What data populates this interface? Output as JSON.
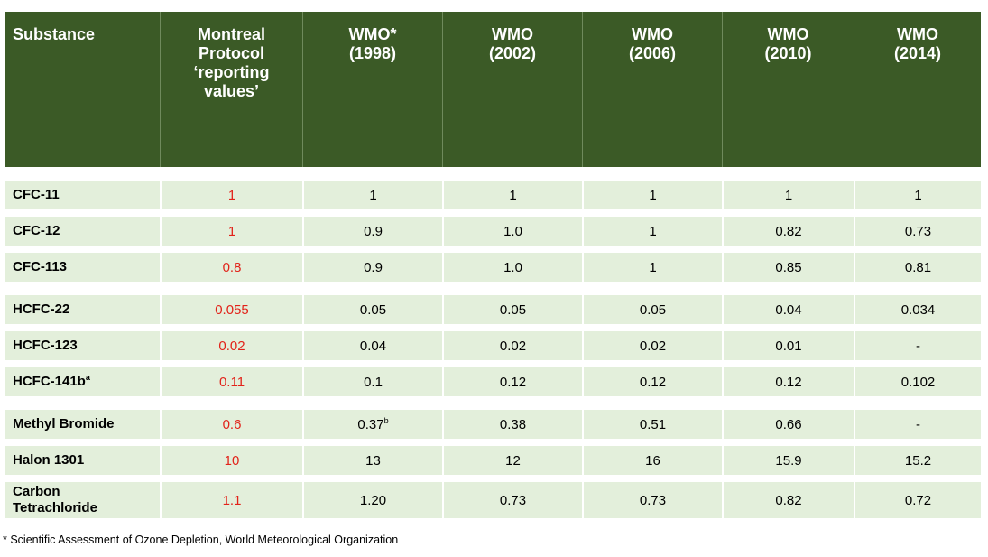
{
  "table": {
    "headers": [
      "Substance",
      "Montreal\nProtocol\n‘reporting\nvalues’",
      "WMO*\n(1998)",
      "WMO\n(2002)",
      "WMO\n(2006)",
      "WMO\n(2010)",
      "WMO\n(2014)"
    ],
    "groups": [
      [
        {
          "substance": "CFC-11",
          "sup": "",
          "mp": "1",
          "w1998": "1",
          "w1998_sup": "",
          "w2002": "1",
          "w2006": "1",
          "w2010": "1",
          "w2014": "1"
        },
        {
          "substance": "CFC-12",
          "sup": "",
          "mp": "1",
          "w1998": "0.9",
          "w1998_sup": "",
          "w2002": "1.0",
          "w2006": "1",
          "w2010": "0.82",
          "w2014": "0.73"
        },
        {
          "substance": "CFC-113",
          "sup": "",
          "mp": "0.8",
          "w1998": "0.9",
          "w1998_sup": "",
          "w2002": "1.0",
          "w2006": "1",
          "w2010": "0.85",
          "w2014": "0.81"
        }
      ],
      [
        {
          "substance": "HCFC-22",
          "sup": "",
          "mp": "0.055",
          "w1998": "0.05",
          "w1998_sup": "",
          "w2002": "0.05",
          "w2006": "0.05",
          "w2010": "0.04",
          "w2014": "0.034"
        },
        {
          "substance": "HCFC-123",
          "sup": "",
          "mp": "0.02",
          "w1998": "0.04",
          "w1998_sup": "",
          "w2002": "0.02",
          "w2006": "0.02",
          "w2010": "0.01",
          "w2014": "-"
        },
        {
          "substance": "HCFC-141b",
          "sup": "a",
          "mp": "0.11",
          "w1998": "0.1",
          "w1998_sup": "",
          "w2002": "0.12",
          "w2006": "0.12",
          "w2010": "0.12",
          "w2014": "0.102"
        }
      ],
      [
        {
          "substance": "Methyl Bromide",
          "sup": "",
          "mp": "0.6",
          "w1998": "0.37",
          "w1998_sup": "b",
          "w2002": "0.38",
          "w2006": "0.51",
          "w2010": "0.66",
          "w2014": "-"
        },
        {
          "substance": "Halon 1301",
          "sup": "",
          "mp": "10",
          "w1998": "13",
          "w1998_sup": "",
          "w2002": "12",
          "w2006": "16",
          "w2010": "15.9",
          "w2014": "15.2"
        },
        {
          "substance": "Carbon\nTetrachloride",
          "sup": "",
          "mp": "1.1",
          "w1998": "1.20",
          "w1998_sup": "",
          "w2002": "0.73",
          "w2006": "0.73",
          "w2010": "0.82",
          "w2014": "0.72"
        }
      ]
    ]
  },
  "footnote": "* Scientific Assessment of Ozone Depletion, World Meteorological Organization",
  "colors": {
    "header_bg": "#3b5a26",
    "row_bg": "#e3efdb",
    "protocol_value": "#e2231a"
  }
}
